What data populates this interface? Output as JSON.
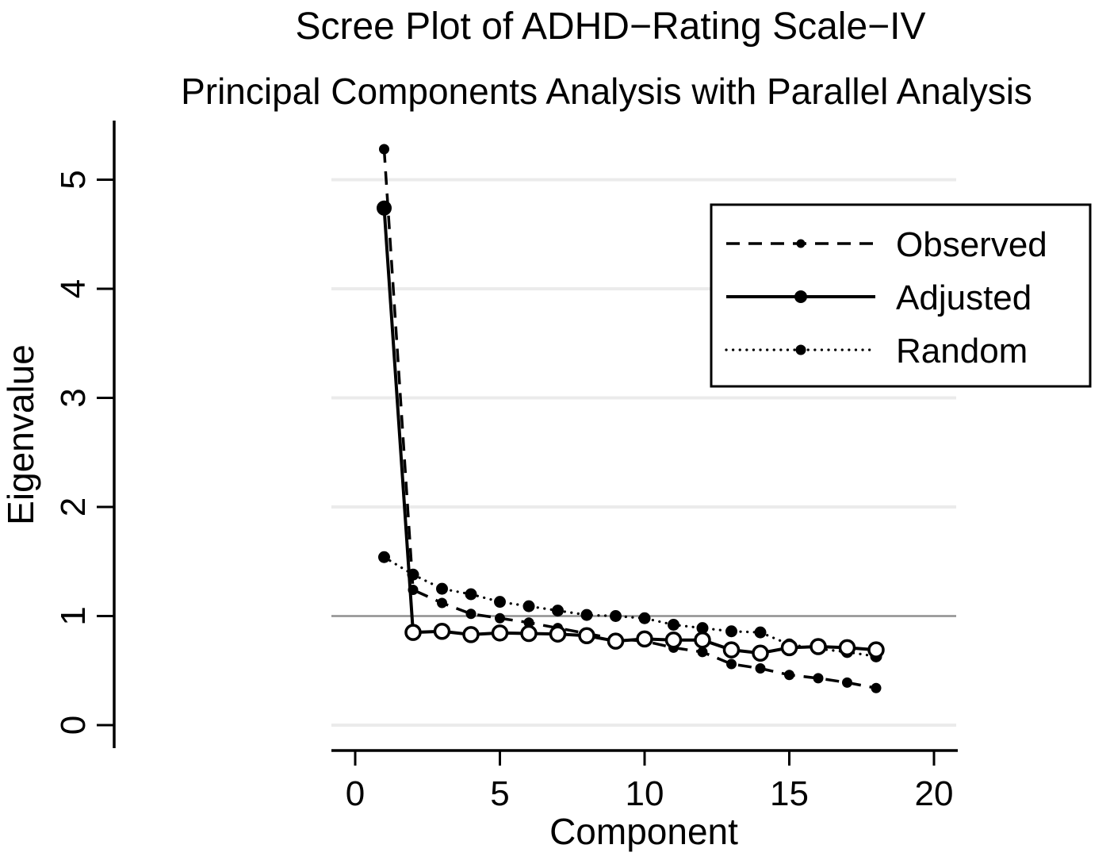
{
  "chart_data": {
    "type": "line",
    "title": "Scree Plot of ADHD−Rating Scale−IV",
    "subtitle": "Principal Components Analysis with Parallel Analysis",
    "xlabel": "Component",
    "ylabel": "Eigenvalue",
    "xlim": [
      -0.8,
      20.8
    ],
    "ylim": [
      0,
      5.5
    ],
    "x_ticks": [
      0,
      5,
      10,
      15,
      20
    ],
    "y_ticks": [
      0,
      1,
      2,
      3,
      4,
      5
    ],
    "grid": "horizontal-light",
    "reference_line_y": 1,
    "x": [
      1,
      2,
      3,
      4,
      5,
      6,
      7,
      8,
      9,
      10,
      11,
      12,
      13,
      14,
      15,
      16,
      17,
      18
    ],
    "series": [
      {
        "name": "Observed",
        "line_style": "dashed",
        "marker": "filled-circle",
        "marker_radius": 6,
        "values": [
          5.28,
          1.24,
          1.12,
          1.02,
          0.98,
          0.94,
          0.89,
          0.84,
          0.79,
          0.77,
          0.71,
          0.67,
          0.56,
          0.52,
          0.46,
          0.43,
          0.39,
          0.34
        ]
      },
      {
        "name": "Adjusted",
        "line_style": "solid",
        "marker": "open-circle",
        "marker_radius": 9,
        "first_marker_filled": true,
        "values": [
          4.74,
          0.85,
          0.86,
          0.83,
          0.845,
          0.84,
          0.835,
          0.82,
          0.77,
          0.79,
          0.78,
          0.78,
          0.69,
          0.66,
          0.71,
          0.72,
          0.71,
          0.69
        ]
      },
      {
        "name": "Random",
        "line_style": "dotted",
        "marker": "filled-circle",
        "marker_radius": 7,
        "values": [
          1.54,
          1.38,
          1.25,
          1.2,
          1.13,
          1.09,
          1.05,
          1.01,
          1.0,
          0.98,
          0.92,
          0.89,
          0.86,
          0.85,
          0.74,
          0.7,
          0.67,
          0.63
        ]
      }
    ],
    "draw_order": [
      "Random",
      "Observed",
      "Adjusted"
    ],
    "legend": {
      "position": "top-right",
      "entries": [
        "Observed",
        "Adjusted",
        "Random"
      ]
    },
    "colors": {
      "foreground": "#000000",
      "background": "#ffffff",
      "grid": "#ebebeb",
      "reference_line": "#8f8f8f"
    }
  }
}
